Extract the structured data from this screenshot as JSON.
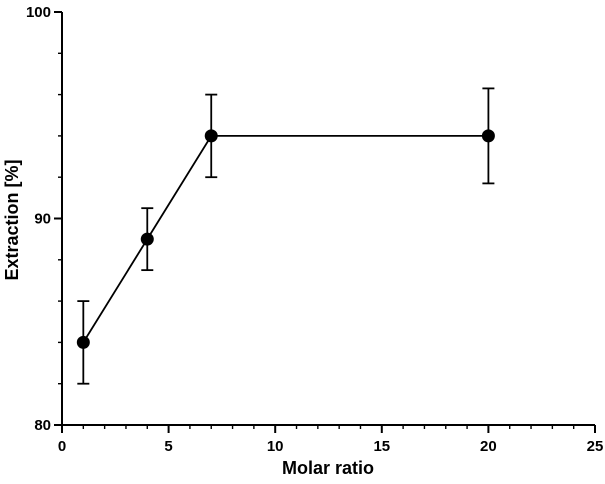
{
  "chart_data": {
    "type": "line",
    "title": "",
    "xlabel": "Molar ratio",
    "ylabel": "Extraction [%]",
    "x": [
      1,
      4,
      7,
      20
    ],
    "y": [
      84,
      89,
      94,
      94
    ],
    "yerr": [
      2,
      1.5,
      2,
      2.3
    ],
    "xlim": [
      0,
      25
    ],
    "ylim": [
      80,
      100
    ],
    "x_major_ticks": [
      0,
      5,
      10,
      15,
      20,
      25
    ],
    "y_major_ticks": [
      80,
      90,
      100
    ],
    "x_minor_step": 1,
    "y_minor_step": 2,
    "grid": false,
    "legend": "none",
    "marker": "filled-circle",
    "marker_size": 6.5,
    "line_color": "#000000",
    "marker_color": "#000000",
    "axis_color": "#000000",
    "background_color": "#ffffff"
  }
}
